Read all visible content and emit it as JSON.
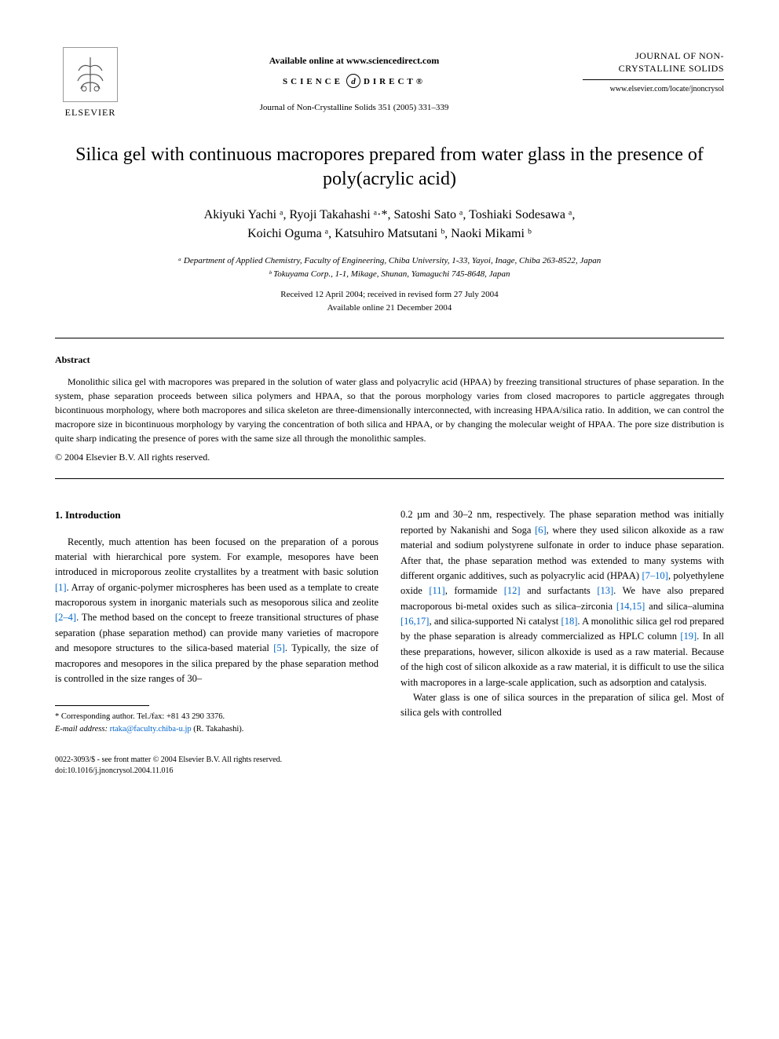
{
  "header": {
    "publisher_label": "ELSEVIER",
    "available_text": "Available online at www.sciencedirect.com",
    "science_direct_pre": "SCIENCE",
    "science_direct_mid": "d",
    "science_direct_post": "DIRECT®",
    "journal_ref": "Journal of Non-Crystalline Solids 351 (2005) 331–339",
    "journal_name": "JOURNAL OF NON-CRYSTALLINE SOLIDS",
    "journal_url": "www.elsevier.com/locate/jnoncrysol"
  },
  "title": "Silica gel with continuous macropores prepared from water glass in the presence of poly(acrylic acid)",
  "authors_line1": "Akiyuki Yachi ᵃ, Ryoji Takahashi ᵃ·*, Satoshi Sato ᵃ, Toshiaki Sodesawa ᵃ,",
  "authors_line2": "Koichi Oguma ᵃ, Katsuhiro Matsutani ᵇ, Naoki Mikami ᵇ",
  "affiliations": {
    "a": "ᵃ Department of Applied Chemistry, Faculty of Engineering, Chiba University, 1-33, Yayoi, Inage, Chiba 263-8522, Japan",
    "b": "ᵇ Tokuyama Corp., 1-1, Mikage, Shunan, Yamaguchi 745-8648, Japan"
  },
  "dates": {
    "received": "Received 12 April 2004; received in revised form 27 July 2004",
    "available": "Available online 21 December 2004"
  },
  "abstract": {
    "heading": "Abstract",
    "body": "Monolithic silica gel with macropores was prepared in the solution of water glass and polyacrylic acid (HPAA) by freezing transitional structures of phase separation. In the system, phase separation proceeds between silica polymers and HPAA, so that the porous morphology varies from closed macropores to particle aggregates through bicontinuous morphology, where both macropores and silica skeleton are three-dimensionally interconnected, with increasing HPAA/silica ratio. In addition, we can control the macropore size in bicontinuous morphology by varying the concentration of both silica and HPAA, or by changing the molecular weight of HPAA. The pore size distribution is quite sharp indicating the presence of pores with the same size all through the monolithic samples.",
    "copyright": "© 2004 Elsevier B.V. All rights reserved."
  },
  "body": {
    "section_heading": "1. Introduction",
    "col1_p1": "Recently, much attention has been focused on the preparation of a porous material with hierarchical pore system. For example, mesopores have been introduced in microporous zeolite crystallites by a treatment with basic solution [1]. Array of organic-polymer microspheres has been used as a template to create macroporous system in inorganic materials such as mesoporous silica and zeolite [2–4]. The method based on the concept to freeze transitional structures of phase separation (phase separation method) can provide many varieties of macropore and mesopore structures to the silica-based material [5]. Typically, the size of macropores and mesopores in the silica prepared by the phase separation method is controlled in the size ranges of 30–",
    "col2_p1": "0.2 µm and 30–2 nm, respectively. The phase separation method was initially reported by Nakanishi and Soga [6], where they used silicon alkoxide as a raw material and sodium polystyrene sulfonate in order to induce phase separation. After that, the phase separation method was extended to many systems with different organic additives, such as polyacrylic acid (HPAA) [7–10], polyethylene oxide [11], formamide [12] and surfactants [13]. We have also prepared macroporous bi-metal oxides such as silica–zirconia [14,15] and silica–alumina [16,17], and silica-supported Ni catalyst [18]. A monolithic silica gel rod prepared by the phase separation is already commercialized as HPLC column [19]. In all these preparations, however, silicon alkoxide is used as a raw material. Because of the high cost of silicon alkoxide as a raw material, it is difficult to use the silica with macropores in a large-scale application, such as adsorption and catalysis.",
    "col2_p2": "Water glass is one of silica sources in the preparation of silica gel. Most of silica gels with controlled"
  },
  "footnote": {
    "corresponding": "* Corresponding author. Tel./fax: +81 43 290 3376.",
    "email_label": "E-mail address:",
    "email": "rtaka@faculty.chiba-u.jp",
    "email_suffix": "(R. Takahashi)."
  },
  "bottom": {
    "issn": "0022-3093/$ - see front matter © 2004 Elsevier B.V. All rights reserved.",
    "doi": "doi:10.1016/j.jnoncrysol.2004.11.016"
  },
  "ref_links": [
    "[1]",
    "[2–4]",
    "[5]",
    "[6]",
    "[7–10]",
    "[11]",
    "[12]",
    "[13]",
    "[14,15]",
    "[16,17]",
    "[18]",
    "[19]"
  ]
}
